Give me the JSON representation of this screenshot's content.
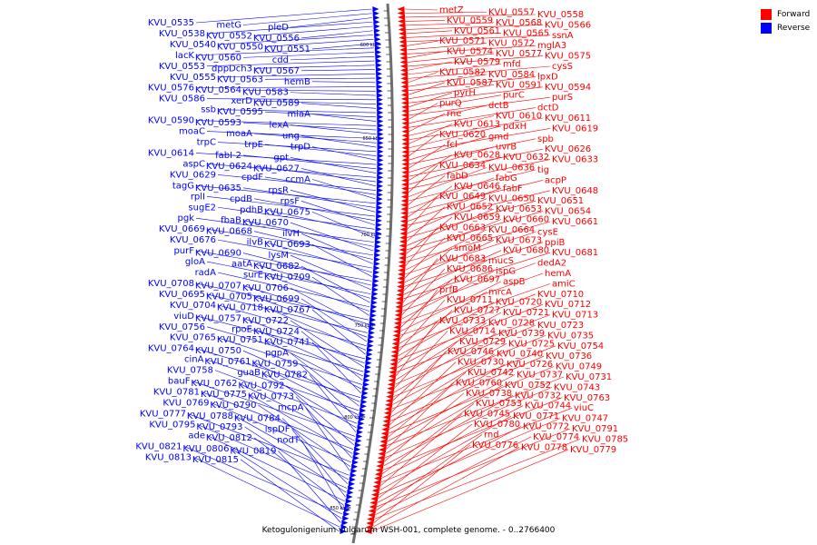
{
  "legend": {
    "forward": {
      "label": "Forward",
      "color": "#ff0000"
    },
    "reverse": {
      "label": "Reverse",
      "color": "#0000ff"
    }
  },
  "caption": "Ketogulonigenium vulgarum WSH-001, complete genome. - 0..2766400",
  "scale_labels": [
    "600 kbp",
    "650 kbp",
    "700 kbp",
    "750 kbp",
    "800 kbp",
    "850 kbp"
  ],
  "reverse_genes": [
    "KVU_0535",
    "metG",
    "pleD",
    "KVU_0538",
    "KVU_0552",
    "KVU_0556",
    "KVU_0540",
    "KVU_0550",
    "KVU_0551",
    "lacK",
    "KVU_0560",
    "cdd",
    "KVU_0553",
    "dppDch3",
    "KVU_0567",
    "KVU_0555",
    "KVU_0563",
    "hemB",
    "KVU_0576",
    "KVU_0564",
    "KVU_0583",
    "KVU_0586",
    "xerD",
    "KVU_0589",
    "ssb",
    "KVU_0595",
    "miaA",
    "KVU_0590",
    "KVU_0593",
    "lexA",
    "moaC",
    "moaA",
    "ung",
    "trpC",
    "trpE",
    "trpD",
    "KVU_0614",
    "fabI-2",
    "gpt",
    "aspC",
    "KVU_0624",
    "KVU_0627",
    "KVU_0629",
    "cpdF",
    "ccmA",
    "tagG",
    "KVU_0635",
    "rpsR",
    "rplI",
    "cpdB",
    "rpsF",
    "sugE2",
    "pdhB",
    "KVU_0675",
    "pgk",
    "fbaB",
    "KVU_0670",
    "KVU_0669",
    "KVU_0668",
    "ilvH",
    "KVU_0676",
    "ilvB",
    "KVU_0693",
    "purF",
    "KVU_0690",
    "lysM",
    "gloA",
    "aatA",
    "KVU_0682",
    "radA",
    "surE",
    "KVU_0709",
    "KVU_0708",
    "KVU_0707",
    "KVU_0706",
    "KVU_0695",
    "KVU_0705",
    "KVU_0699",
    "KVU_0704",
    "KVU_0718",
    "KVU_0767",
    "viuD",
    "KVU_0757",
    "KVU_0722",
    "KVU_0756",
    "rpoE",
    "KVU_0724",
    "KVU_0765",
    "KVU_0751",
    "KVU_0741",
    "KVU_0764",
    "KVU_0750",
    "pgpA",
    "cinA",
    "KVU_0761",
    "KVU_0759",
    "KVU_0758",
    "guaB",
    "KVU_0782",
    "bauF",
    "KVU_0762",
    "KVU_0792",
    "KVU_0781",
    "KVU_0775",
    "KVU_0773",
    "KVU_0769",
    "KVU_0790",
    "mcpA",
    "KVU_0777",
    "KVU_0788",
    "KVU_0784",
    "KVU_0795",
    "KVU_0793",
    "ispDF",
    "ade",
    "KVU_0812",
    "nodT",
    "KVU_0821",
    "KVU_0806",
    "KVU_0819",
    "KVU_0813",
    "KVU_0815"
  ],
  "forward_genes": [
    "metZ",
    "KVU_0557",
    "KVU_0558",
    "KVU_0559",
    "KVU_0568",
    "KVU_0566",
    "KVU_0561",
    "KVU_0565",
    "ssnA",
    "KVU_0571",
    "KVU_0572",
    "mglA3",
    "KVU_0574",
    "KVU_0577",
    "KVU_0575",
    "KVU_0579",
    "mfd",
    "cysS",
    "KVU_0582",
    "KVU_0584",
    "lpxD",
    "KVU_0587",
    "KVU_0591",
    "KVU_0594",
    "pyrH",
    "purC",
    "purS",
    "purQ",
    "dctB",
    "dctD",
    "rne",
    "KVU_0610",
    "KVU_0611",
    "KVU_0613",
    "pdxH",
    "KVU_0619",
    "KVU_0620",
    "gmd",
    "spb",
    "fcl",
    "uvrB",
    "KVU_0626",
    "KVU_0628",
    "KVU_0632",
    "KVU_0633",
    "KVU_0634",
    "KVU_0636",
    "tig",
    "fabD",
    "fabG",
    "acpP",
    "KVU_0646",
    "fabF",
    "KVU_0648",
    "KVU_0649",
    "KVU_0650",
    "KVU_0651",
    "KVU_0652",
    "KVU_0653",
    "KVU_0654",
    "KVU_0659",
    "KVU_0660",
    "KVU_0661",
    "KVU_0663",
    "KVU_0664",
    "cysE",
    "KVU_0665",
    "KVU_0673",
    "ppiB",
    "smoM",
    "KVU_0680",
    "KVU_0681",
    "KVU_0683",
    "mucS",
    "dedA2",
    "KVU_0686",
    "ispG",
    "hemA",
    "KVU_0697",
    "aspB",
    "amiC",
    "prfB",
    "mrcA",
    "KVU_0710",
    "KVU_0711",
    "KVU_0720",
    "KVU_0712",
    "KVU_0727",
    "KVU_0721",
    "KVU_0713",
    "KVU_0733",
    "KVU_0728",
    "KVU_0723",
    "KVU_0714",
    "KVU_0739",
    "KVU_0735",
    "KVU_0729",
    "KVU_0725",
    "KVU_0754",
    "KVU_0746",
    "KVU_0740",
    "KVU_0736",
    "KVU_0730",
    "KVU_0726",
    "KVU_0749",
    "KVU_0742",
    "KVU_0737",
    "KVU_0731",
    "KVU_0760",
    "KVU_0752",
    "KVU_0743",
    "KVU_0738",
    "KVU_0732",
    "KVU_0763",
    "KVU_0753",
    "KVU_0744",
    "viuC",
    "KVU_0745",
    "KVU_0771",
    "KVU_0747",
    "KVU_0780",
    "KVU_0772",
    "KVU_0791",
    "rnd",
    "KVU_0774",
    "KVU_0785",
    "KVU_0776",
    "KVU_0778",
    "KVU_0779"
  ]
}
